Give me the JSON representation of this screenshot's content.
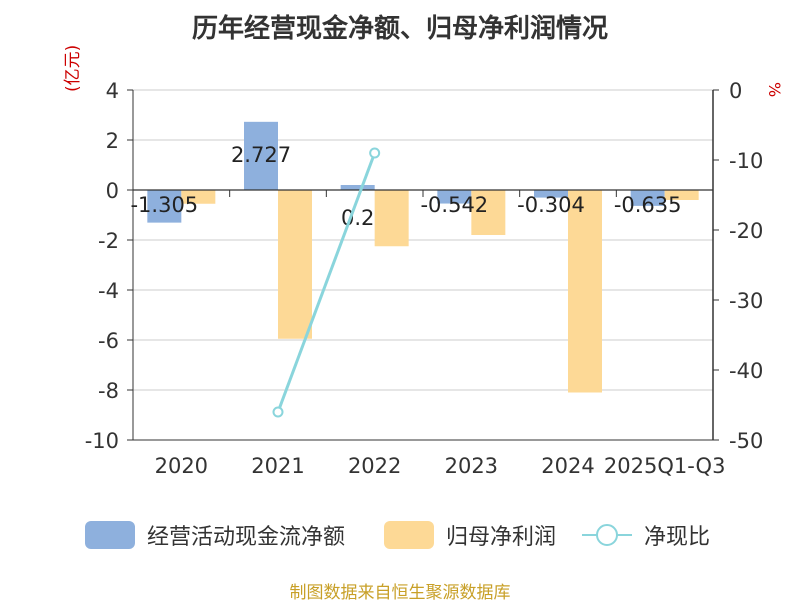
{
  "chart_data": {
    "type": "bar+line",
    "title": "历年经营现金净额、归母净利润情况",
    "left_axis_unit": "(亿元)",
    "right_axis_unit": "%",
    "categories": [
      "2020",
      "2021",
      "2022",
      "2023",
      "2024",
      "2025Q1-Q3"
    ],
    "left_ticks": [
      "4",
      "2",
      "0",
      "-2",
      "-4",
      "-6",
      "-8",
      "-10"
    ],
    "right_ticks": [
      "0",
      "-10",
      "-20",
      "-30",
      "-40",
      "-50"
    ],
    "ylim_left": [
      -10,
      4
    ],
    "ylim_right": [
      -50,
      0
    ],
    "series": [
      {
        "name": "经营活动现金流净额",
        "type": "bar",
        "axis": "left",
        "color": "#8eb0dd",
        "values": [
          -1.305,
          2.727,
          0.2,
          -0.542,
          -0.304,
          -0.635
        ],
        "labels": [
          "-1.305",
          "2.727",
          "0.2",
          "-0.542",
          "-0.304",
          "-0.635"
        ]
      },
      {
        "name": "归母净利润",
        "type": "bar",
        "axis": "left",
        "color": "#fdd996",
        "values": [
          -0.55,
          -5.95,
          -2.25,
          -1.8,
          -8.1,
          -0.4
        ]
      },
      {
        "name": "净现比",
        "type": "line",
        "axis": "right",
        "color": "#8ad5dc",
        "points": [
          [
            1,
            -46
          ],
          [
            2,
            -9
          ]
        ]
      }
    ]
  },
  "legend": {
    "cash_flow": "经营活动现金流净额",
    "net_profit": "归母净利润",
    "ratio": "净现比"
  },
  "source": "制图数据来自恒生聚源数据库"
}
